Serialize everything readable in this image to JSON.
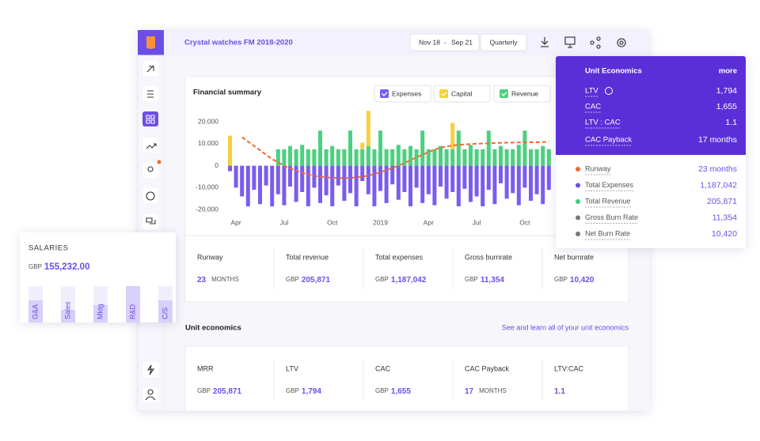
{
  "header": {
    "title": "Crystal watches FM 2018-2020",
    "date_from": "Nov 18",
    "date_sep": "-",
    "date_to": "Sep 21",
    "period": "Quarterly"
  },
  "financial_summary": {
    "title": "Financial summary",
    "stats": [
      {
        "label": "Runway",
        "value": "23",
        "unit": "MONTHS"
      },
      {
        "label": "Total revenue",
        "currency": "GBP",
        "value": "205,871"
      },
      {
        "label": "Total expenses",
        "currency": "GBP",
        "value": "1,187,042"
      },
      {
        "label": "Gross burnrate",
        "currency": "GBP",
        "value": "11,354"
      },
      {
        "label": "Net burnrate",
        "currency": "GBP",
        "value": "10,420"
      }
    ]
  },
  "chart_data": [
    {
      "type": "bar",
      "categories": [
        null,
        "Apr",
        null,
        null,
        null,
        null,
        null,
        null,
        null,
        "Jul",
        null,
        null,
        null,
        null,
        null,
        null,
        null,
        "Oct",
        null,
        null,
        null,
        null,
        null,
        null,
        null,
        "2019",
        null,
        null,
        null,
        null,
        null,
        null,
        null,
        "Apr",
        null,
        null,
        null,
        null,
        null,
        null,
        null,
        "Jul",
        null,
        null,
        null,
        null,
        null,
        null,
        null,
        "Oct",
        null,
        null,
        null,
        null
      ],
      "ylim": [
        -21000,
        24000
      ],
      "yticks": [
        {
          "value": 20000,
          "label": "20,000"
        },
        {
          "value": 10000,
          "label": "10,000"
        },
        0,
        {
          "value": -10000,
          "label": "-10,000"
        },
        {
          "value": -20000,
          "label": "-20,000"
        }
      ],
      "series": [
        {
          "name": "Expenses",
          "color": "#7b5cf0",
          "values": [
            -2500,
            -10000,
            -14000,
            -18500,
            -11000,
            -17500,
            -9000,
            -18500,
            -13000,
            -18000,
            -9500,
            -16500,
            -12000,
            -18500,
            -10000,
            -17000,
            -13500,
            -18500,
            -9000,
            -16000,
            -12500,
            -18500,
            -7000,
            -13000,
            -18500,
            -11500,
            -17000,
            -8500,
            -15500,
            -12000,
            -18500,
            -10000,
            -17000,
            -13000,
            -18000,
            -9500,
            -15000,
            -12000,
            -18500,
            -10500,
            -16500,
            -14000,
            -18500,
            -11000,
            -17500,
            -8000,
            -15000,
            -12500,
            -18000,
            -10000,
            -16000,
            -13000,
            -17500,
            -11000
          ]
        },
        {
          "name": "Capital",
          "color": "#f6cf3b",
          "values": [
            13700,
            0,
            0,
            0,
            0,
            0,
            0,
            0,
            0,
            0,
            0,
            0,
            0,
            0,
            0,
            0,
            0,
            0,
            0,
            0,
            0,
            0,
            3000,
            16000,
            0,
            0,
            0,
            0,
            0,
            0,
            0,
            0,
            0,
            0,
            0,
            0,
            0,
            12000,
            0,
            0,
            0,
            0,
            0,
            0,
            0,
            0,
            0,
            0,
            0,
            0,
            0,
            0,
            0,
            0
          ]
        },
        {
          "name": "Revenue",
          "color": "#4cd080",
          "values": [
            0,
            0,
            0,
            0,
            0,
            0,
            0,
            0,
            7500,
            7500,
            9000,
            7500,
            9500,
            7500,
            7500,
            16000,
            7500,
            9000,
            7500,
            7500,
            16000,
            7500,
            7500,
            9000,
            7500,
            16000,
            7500,
            7500,
            9500,
            7500,
            9000,
            7500,
            16000,
            7500,
            7500,
            9000,
            7500,
            7500,
            16000,
            7500,
            9500,
            7500,
            7500,
            16000,
            7500,
            9000,
            7500,
            7500,
            9500,
            16000,
            7500,
            7500,
            9000,
            7500
          ]
        },
        {
          "type": "line",
          "color": "#f06a2a",
          "values": [
            null,
            null,
            13000,
            11000,
            9000,
            7000,
            5000,
            3000,
            1500,
            0,
            -1200,
            -2300,
            -3200,
            -4000,
            -4600,
            -5000,
            -5300,
            -5500,
            -5600,
            -5600,
            -5500,
            -5300,
            -5000,
            -4500,
            -3800,
            -3000,
            -2000,
            -1000,
            0,
            1200,
            2500,
            3800,
            5000,
            6200,
            7300,
            8200,
            8800,
            9200,
            9500,
            9700,
            9900,
            10000,
            10100,
            10200,
            10300,
            10400,
            10500,
            10500,
            10600,
            10600,
            10700,
            10700,
            10800,
            10800
          ]
        }
      ]
    },
    {
      "type": "bar",
      "title": "SALARIES",
      "currency": "GBP",
      "total": "155,232.00",
      "categories": [
        "G&A",
        "Sales",
        "Mktg",
        "R&D",
        "C/S"
      ],
      "values": [
        28,
        16,
        22,
        46,
        28
      ],
      "ylim": [
        0,
        46
      ],
      "color": "#d8cffb"
    }
  ],
  "unit_economics": {
    "title": "Unit economics",
    "link": "See and learn all of your unit economics",
    "cards": [
      {
        "label": "MRR",
        "currency": "GBP",
        "value": "205,871"
      },
      {
        "label": "LTV",
        "currency": "GBP",
        "value": "1,794"
      },
      {
        "label": "CAC",
        "currency": "GBP",
        "value": "1,655"
      },
      {
        "label": "CAC Payback",
        "value": "17",
        "unit": "MONTHS"
      },
      {
        "label": "LTV:CAC",
        "value": "1.1"
      }
    ]
  },
  "popup": {
    "title": "Unit Economics",
    "more": "more",
    "top_rows": [
      {
        "label": "LTV",
        "value": "1,794"
      },
      {
        "label": "CAC",
        "value": "1,655"
      },
      {
        "label": "LTV : CAC",
        "value": "1.1"
      },
      {
        "label": "CAC Payback",
        "value": "17 months"
      }
    ],
    "rows": [
      {
        "label": "Runway",
        "value": "23 months",
        "color": "#f06a2a"
      },
      {
        "label": "Total Expenses",
        "value": "1,187,042",
        "color": "#6c4ee6"
      },
      {
        "label": "Total Revenue",
        "value": "205,871",
        "color": "#3fce7e"
      },
      {
        "label": "Gross Burn Rate",
        "value": "11,354",
        "color": "#777"
      },
      {
        "label": "Net Burn Rate",
        "value": "10,420",
        "color": "#777"
      }
    ]
  }
}
